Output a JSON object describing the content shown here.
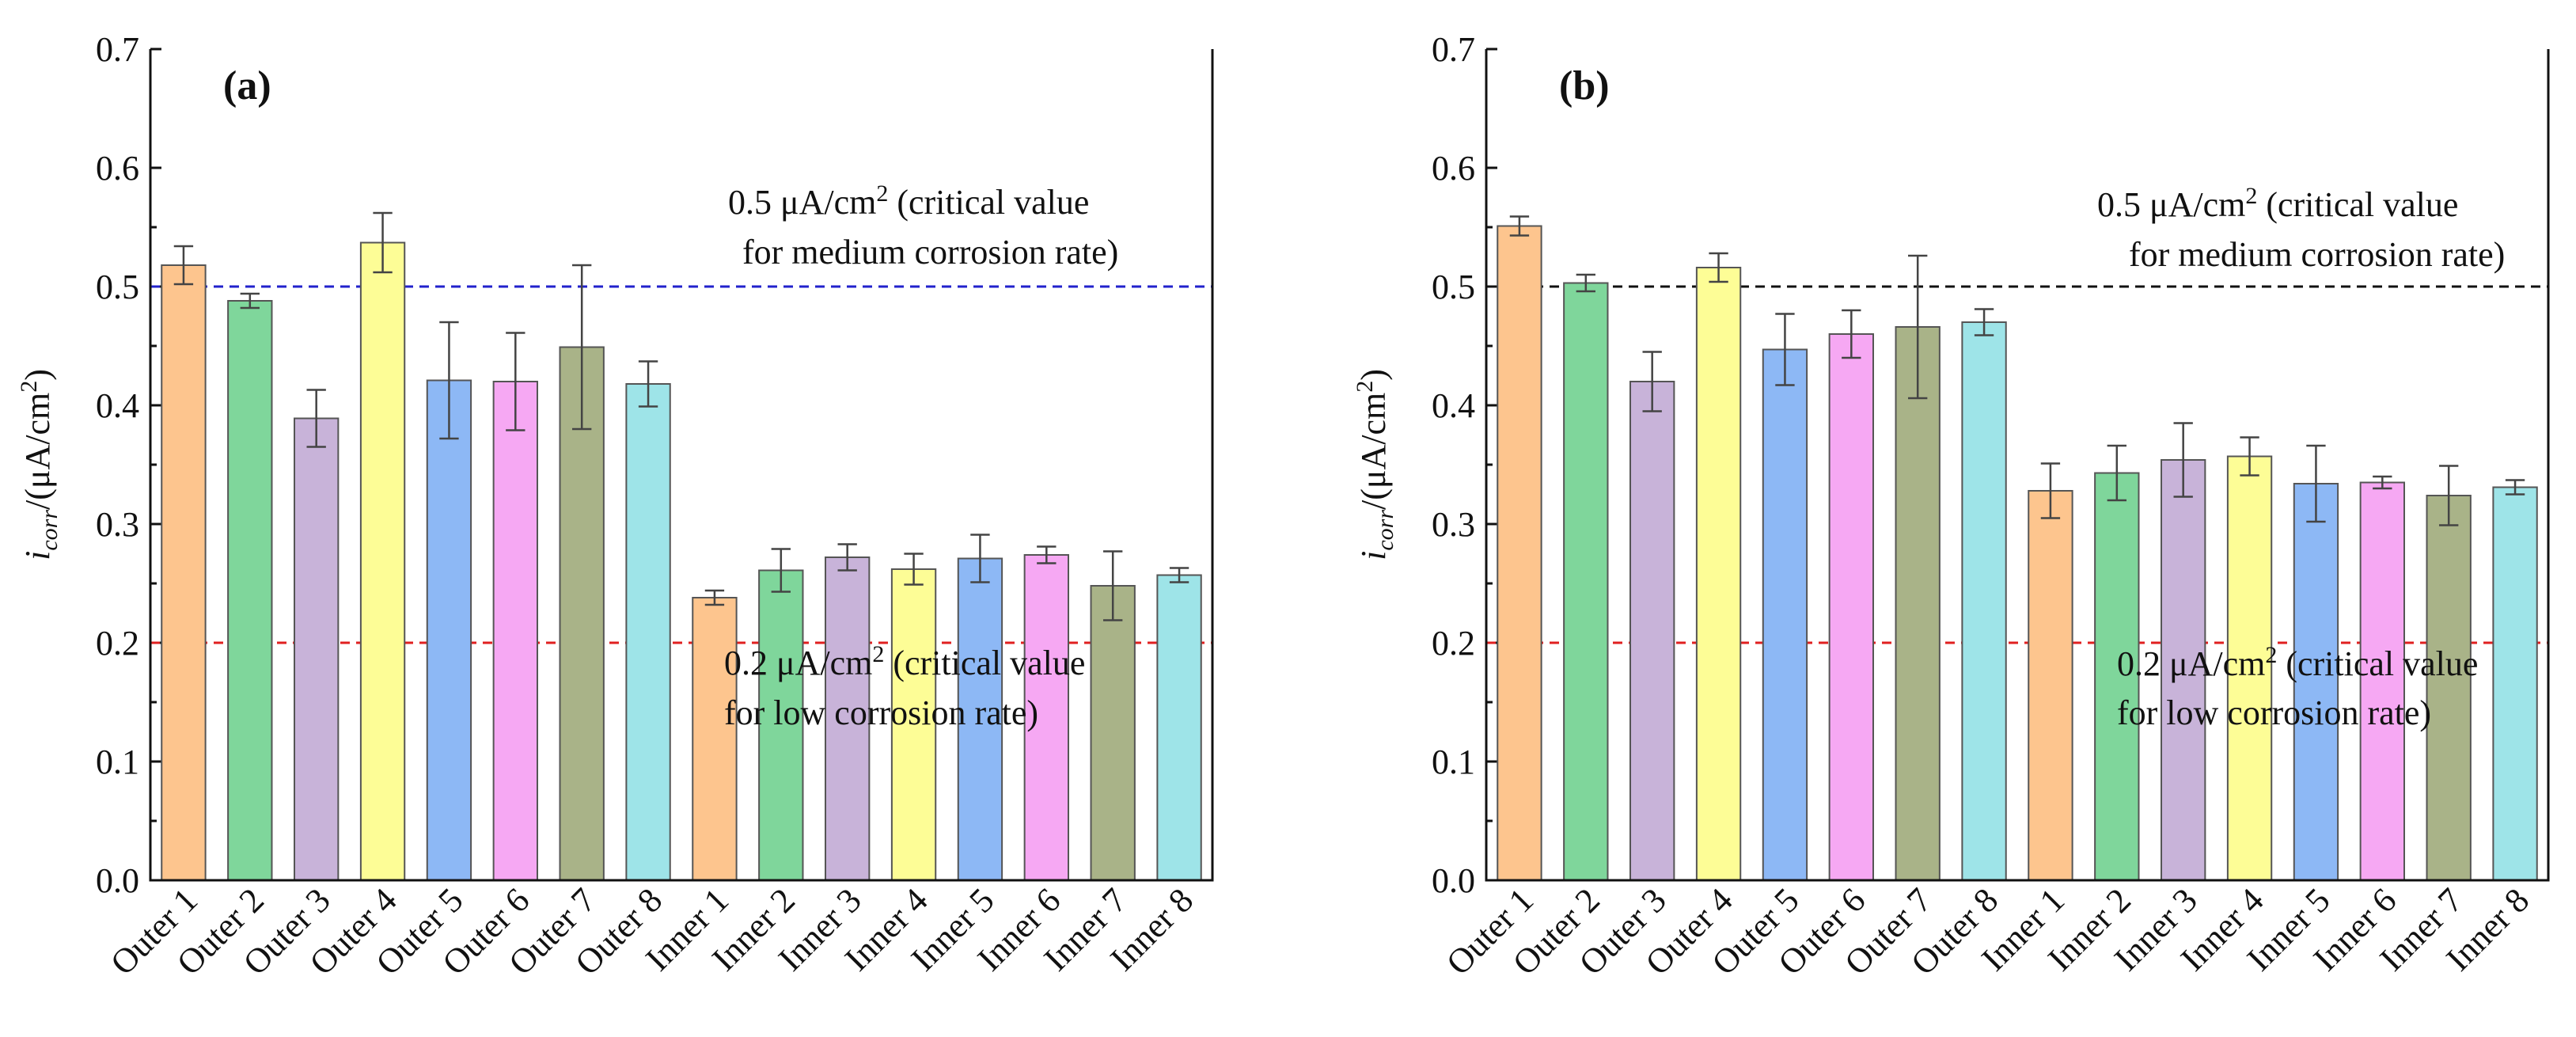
{
  "chart_data": [
    {
      "type": "bar",
      "panel_label": "(a)",
      "title": "",
      "xlabel": "",
      "ylabel_main": "i",
      "ylabel_sub": "corr",
      "ylabel_unit": "/(μA/cm",
      "ylabel_sup": "2",
      "ylabel_close": ")",
      "ylim": [
        0,
        0.7
      ],
      "yticks": [
        "0.0",
        "0.1",
        "0.2",
        "0.3",
        "0.4",
        "0.5",
        "0.6",
        "0.7"
      ],
      "categories": [
        "Outer 1",
        "Outer 2",
        "Outer 3",
        "Outer 4",
        "Outer 5",
        "Outer 6",
        "Outer 7",
        "Outer 8",
        "Inner 1",
        "Inner 2",
        "Inner 3",
        "Inner 4",
        "Inner 5",
        "Inner 6",
        "Inner 7",
        "Inner 8"
      ],
      "values": [
        0.518,
        0.488,
        0.389,
        0.537,
        0.421,
        0.42,
        0.449,
        0.418,
        0.238,
        0.261,
        0.272,
        0.262,
        0.271,
        0.274,
        0.248,
        0.257
      ],
      "errors": [
        0.016,
        0.006,
        0.024,
        0.025,
        0.049,
        0.041,
        0.069,
        0.019,
        0.006,
        0.018,
        0.011,
        0.013,
        0.02,
        0.007,
        0.029,
        0.006
      ],
      "colors": [
        "#FDC58E",
        "#7FD69B",
        "#C8B3D9",
        "#FDFD96",
        "#8DB8F5",
        "#F6A8F3",
        "#A9B388",
        "#9EE4E8",
        "#FDC58E",
        "#7FD69B",
        "#C8B3D9",
        "#FDFD96",
        "#8DB8F5",
        "#F6A8F3",
        "#A9B388",
        "#9EE4E8"
      ],
      "reference_lines": [
        {
          "value": 0.5,
          "color": "#2222CC",
          "line1_pre": "0.5 μA/cm",
          "line1_sup": "2",
          "line1_post": " (critical value",
          "line2": "for medium corrosion rate)"
        },
        {
          "value": 0.2,
          "color": "#E02020",
          "line1_pre": "0.2 μA/cm",
          "line1_sup": "2",
          "line1_post": " (critical value",
          "line2": "for low corrosion rate)"
        }
      ]
    },
    {
      "type": "bar",
      "panel_label": "(b)",
      "title": "",
      "xlabel": "",
      "ylabel_main": "i",
      "ylabel_sub": "corr",
      "ylabel_unit": "/(μA/cm",
      "ylabel_sup": "2",
      "ylabel_close": ")",
      "ylim": [
        0,
        0.7
      ],
      "yticks": [
        "0.0",
        "0.1",
        "0.2",
        "0.3",
        "0.4",
        "0.5",
        "0.6",
        "0.7"
      ],
      "categories": [
        "Outer 1",
        "Outer 2",
        "Outer 3",
        "Outer 4",
        "Outer 5",
        "Outer 6",
        "Outer 7",
        "Outer 8",
        "Inner 1",
        "Inner 2",
        "Inner 3",
        "Inner 4",
        "Inner 5",
        "Inner 6",
        "Inner 7",
        "Inner 8"
      ],
      "values": [
        0.551,
        0.503,
        0.42,
        0.516,
        0.447,
        0.46,
        0.466,
        0.47,
        0.328,
        0.343,
        0.354,
        0.357,
        0.334,
        0.335,
        0.324,
        0.331
      ],
      "errors": [
        0.008,
        0.007,
        0.025,
        0.012,
        0.03,
        0.02,
        0.06,
        0.011,
        0.023,
        0.023,
        0.031,
        0.016,
        0.032,
        0.005,
        0.025,
        0.006
      ],
      "colors": [
        "#FDC58E",
        "#7FD69B",
        "#C8B3D9",
        "#FDFD96",
        "#8DB8F5",
        "#F6A8F3",
        "#A9B388",
        "#9EE4E8",
        "#FDC58E",
        "#7FD69B",
        "#C8B3D9",
        "#FDFD96",
        "#8DB8F5",
        "#F6A8F3",
        "#A9B388",
        "#9EE4E8"
      ],
      "reference_lines": [
        {
          "value": 0.5,
          "color": "#111111",
          "line1_pre": "0.5 μA/cm",
          "line1_sup": "2",
          "line1_post": " (critical value",
          "line2": "for medium corrosion rate)"
        },
        {
          "value": 0.2,
          "color": "#E02020",
          "line1_pre": "0.2 μA/cm",
          "line1_sup": "2",
          "line1_post": " (critical value",
          "line2": "for low corrosion rate)"
        }
      ]
    }
  ]
}
